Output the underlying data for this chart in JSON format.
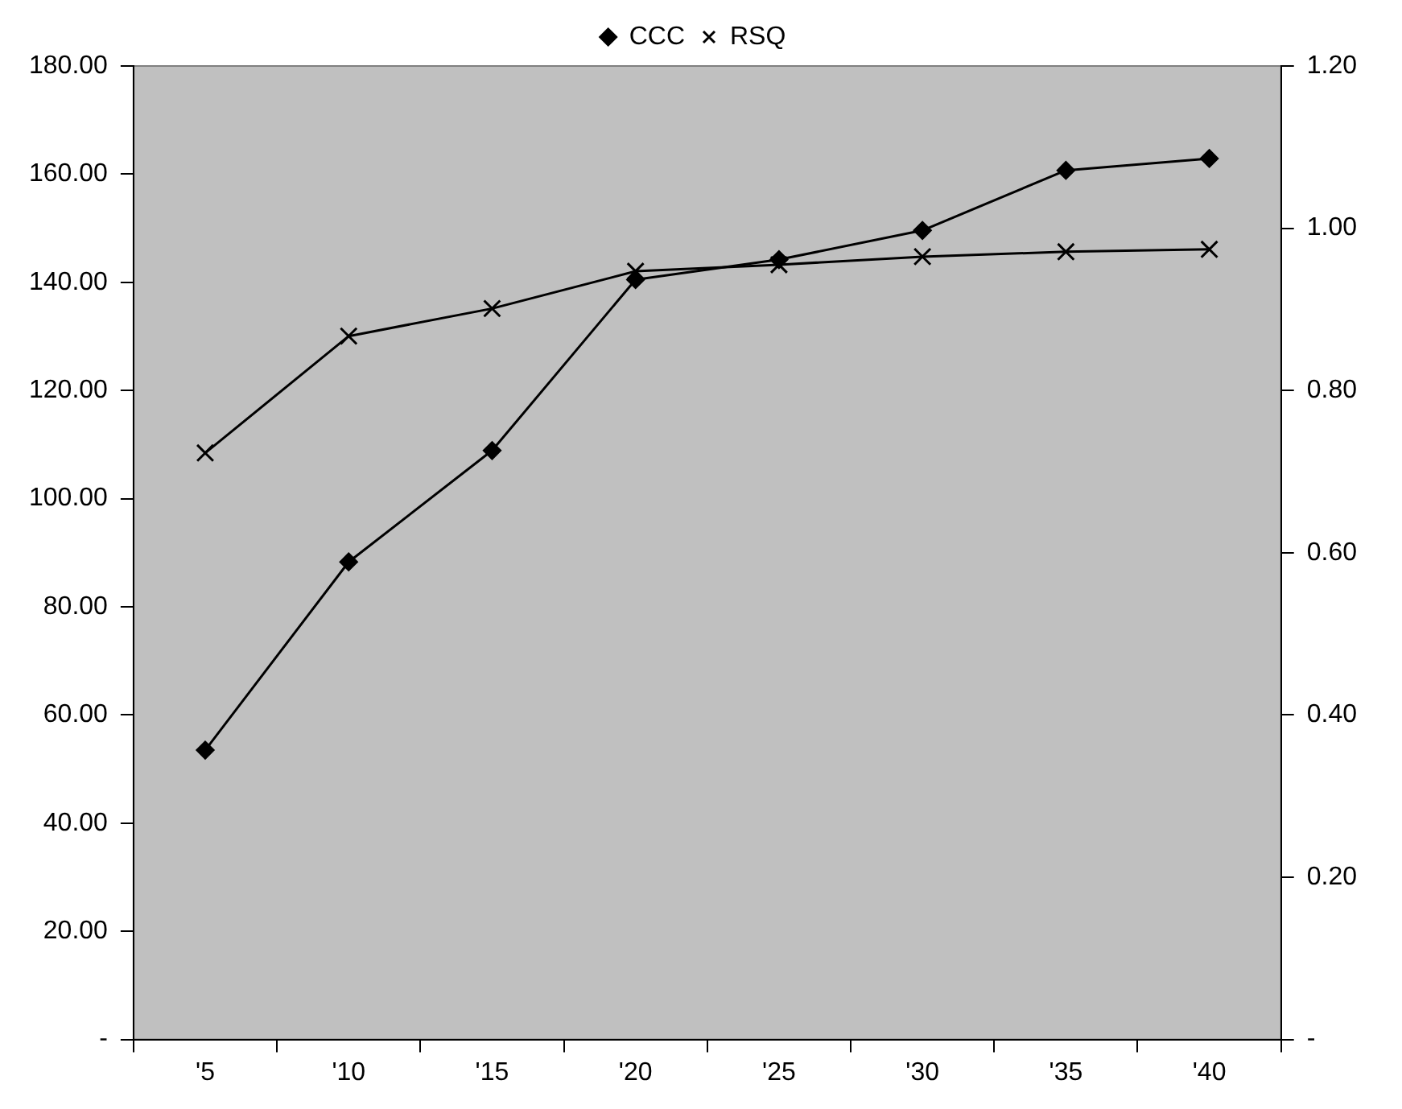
{
  "chart_data": {
    "type": "line",
    "categories": [
      "'5",
      "'10",
      "'15",
      "'20",
      "'25",
      "'30",
      "'35",
      "'40"
    ],
    "series": [
      {
        "name": "CCC",
        "color": "#000000",
        "marker": "diamond",
        "values": [
          53.5,
          88.3,
          108.9,
          140.5,
          144.2,
          149.6,
          160.7,
          162.9
        ]
      },
      {
        "name": "RSQ",
        "color": "#000000",
        "marker": "cross",
        "axis": "y2",
        "values": [
          0.723,
          0.867,
          0.901,
          0.947,
          0.955,
          0.965,
          0.971,
          0.974
        ]
      }
    ],
    "ylim": [
      0,
      180
    ],
    "yticks": [
      {
        "value": 0,
        "label": "-"
      },
      {
        "value": 20,
        "label": "20.00"
      },
      {
        "value": 40,
        "label": "40.00"
      },
      {
        "value": 60,
        "label": "60.00"
      },
      {
        "value": 80,
        "label": "80.00"
      },
      {
        "value": 100,
        "label": "100.00"
      },
      {
        "value": 120,
        "label": "120.00"
      },
      {
        "value": 140,
        "label": "140.00"
      },
      {
        "value": 160,
        "label": "160.00"
      },
      {
        "value": 180,
        "label": "180.00"
      }
    ],
    "y2lim": [
      0,
      1.2
    ],
    "y2ticks": [
      {
        "value": 0,
        "label": "-"
      },
      {
        "value": 0.2,
        "label": "0.20"
      },
      {
        "value": 0.4,
        "label": "0.40"
      },
      {
        "value": 0.6,
        "label": "0.60"
      },
      {
        "value": 0.8,
        "label": "0.80"
      },
      {
        "value": 1,
        "label": "1.00"
      },
      {
        "value": 1.2,
        "label": "1.20"
      }
    ],
    "grid": false,
    "legend": "top",
    "line_style": "solid"
  }
}
